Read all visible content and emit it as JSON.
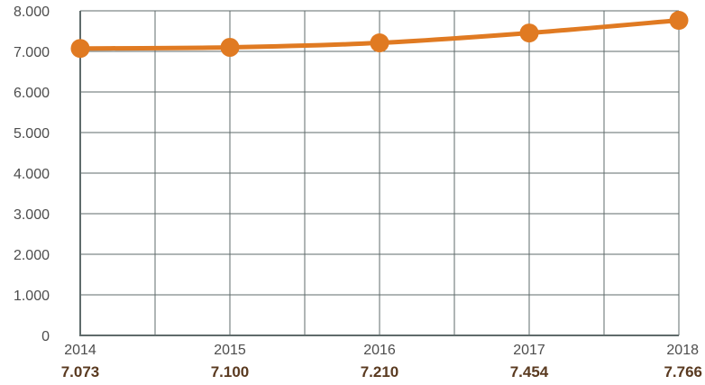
{
  "chart_data": {
    "type": "line",
    "categories": [
      "2014",
      "2015",
      "2016",
      "2017",
      "2018"
    ],
    "values": [
      7073,
      7100,
      7210,
      7454,
      7766
    ],
    "data_labels": [
      "7.073",
      "7.100",
      "7.210",
      "7.454",
      "7.766"
    ],
    "y_ticks": [
      0,
      1000,
      2000,
      3000,
      4000,
      5000,
      6000,
      7000,
      8000
    ],
    "y_tick_labels": [
      "0",
      "1.000",
      "2.000",
      "3.000",
      "4.000",
      "5.000",
      "6.000",
      "7.000",
      "8.000"
    ],
    "ylim": [
      0,
      8000
    ],
    "grid": true,
    "title": "",
    "xlabel": "",
    "ylabel": "",
    "colors": {
      "line": "#e07a22",
      "marker": "#e07a22",
      "grid": "#5f6b6b",
      "axis": "#5f6b6b",
      "data_label": "#5a3a20"
    }
  }
}
